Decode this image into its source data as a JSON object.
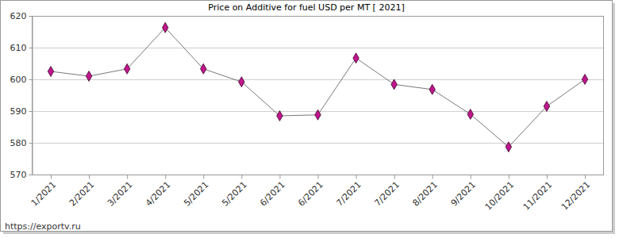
{
  "chart_data": {
    "type": "line",
    "title": "Price on Additive for fuel USD per MT [ 2021]",
    "source": "https://exportv.ru",
    "categories": [
      "1/2021",
      "2/2021",
      "3/2021",
      "4/2021",
      "5/2021",
      "5/2021",
      "6/2021",
      "6/2021",
      "7/2021",
      "7/2021",
      "8/2021",
      "9/2021",
      "10/2021",
      "11/2021",
      "12/2021"
    ],
    "values": [
      602.5,
      601,
      603.3,
      616.3,
      603.3,
      599.2,
      588.5,
      588.8,
      606.7,
      598.4,
      596.8,
      589,
      578.7,
      591.5,
      600
    ],
    "color": "#c0168c",
    "marker": "diamond",
    "ylim": [
      570,
      620
    ],
    "yticks": [
      570,
      580,
      590,
      600,
      610,
      620
    ],
    "grid": true
  }
}
